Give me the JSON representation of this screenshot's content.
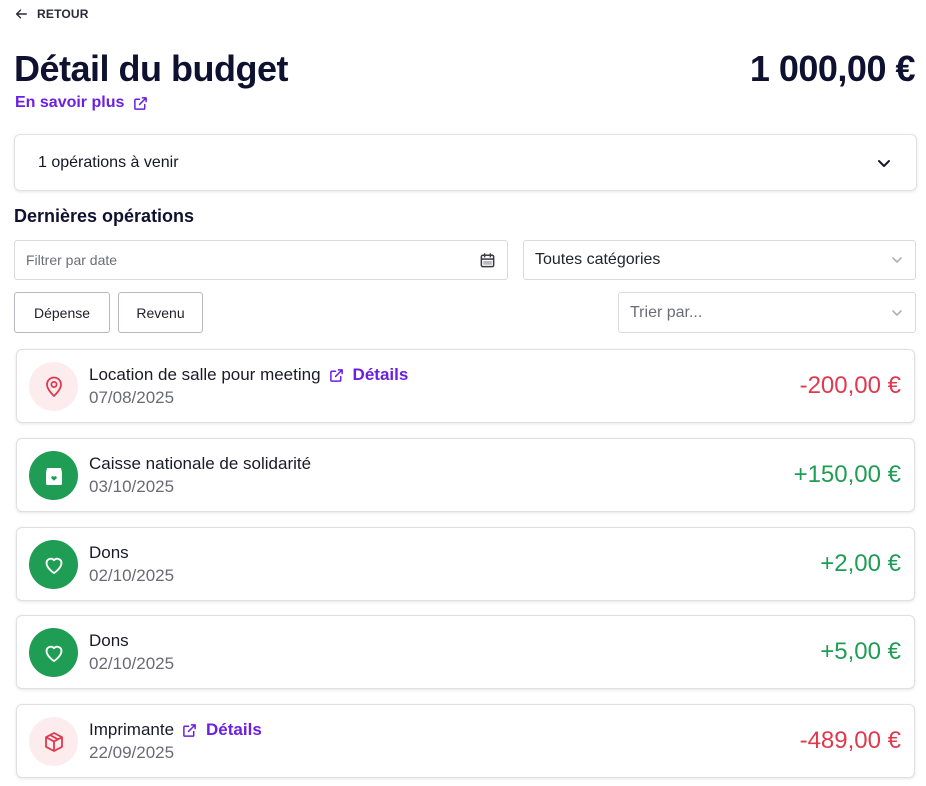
{
  "header": {
    "back_label": "RETOUR",
    "title": "Détail du budget",
    "total": "1 000,00 €",
    "learn_more": "En savoir plus"
  },
  "upcoming": {
    "label": "1 opérations à venir"
  },
  "section": {
    "title": "Dernières opérations"
  },
  "filters": {
    "date_placeholder": "Filtrer par date",
    "category_value": "Toutes catégories",
    "expense_button": "Dépense",
    "income_button": "Revenu",
    "sort_placeholder": "Trier par..."
  },
  "colors": {
    "accent": "#6b1fe0",
    "negative": "#e0394e",
    "positive": "#1f9d55"
  },
  "operations": [
    {
      "label": "Location de salle pour meeting",
      "details": "Détails",
      "date": "07/08/2025",
      "amount": "-200,00 €",
      "icon": "location-pin-icon",
      "kind": "negative"
    },
    {
      "label": "Caisse nationale de solidarité",
      "date": "03/10/2025",
      "amount": "+150,00 €",
      "icon": "gift-box-icon",
      "kind": "positive"
    },
    {
      "label": "Dons",
      "date": "02/10/2025",
      "amount": "+2,00 €",
      "icon": "heart-icon",
      "kind": "positive"
    },
    {
      "label": "Dons",
      "date": "02/10/2025",
      "amount": "+5,00 €",
      "icon": "heart-icon",
      "kind": "positive"
    },
    {
      "label": "Imprimante",
      "details": "Détails",
      "date": "22/09/2025",
      "amount": "-489,00 €",
      "icon": "package-icon",
      "kind": "negative"
    }
  ]
}
